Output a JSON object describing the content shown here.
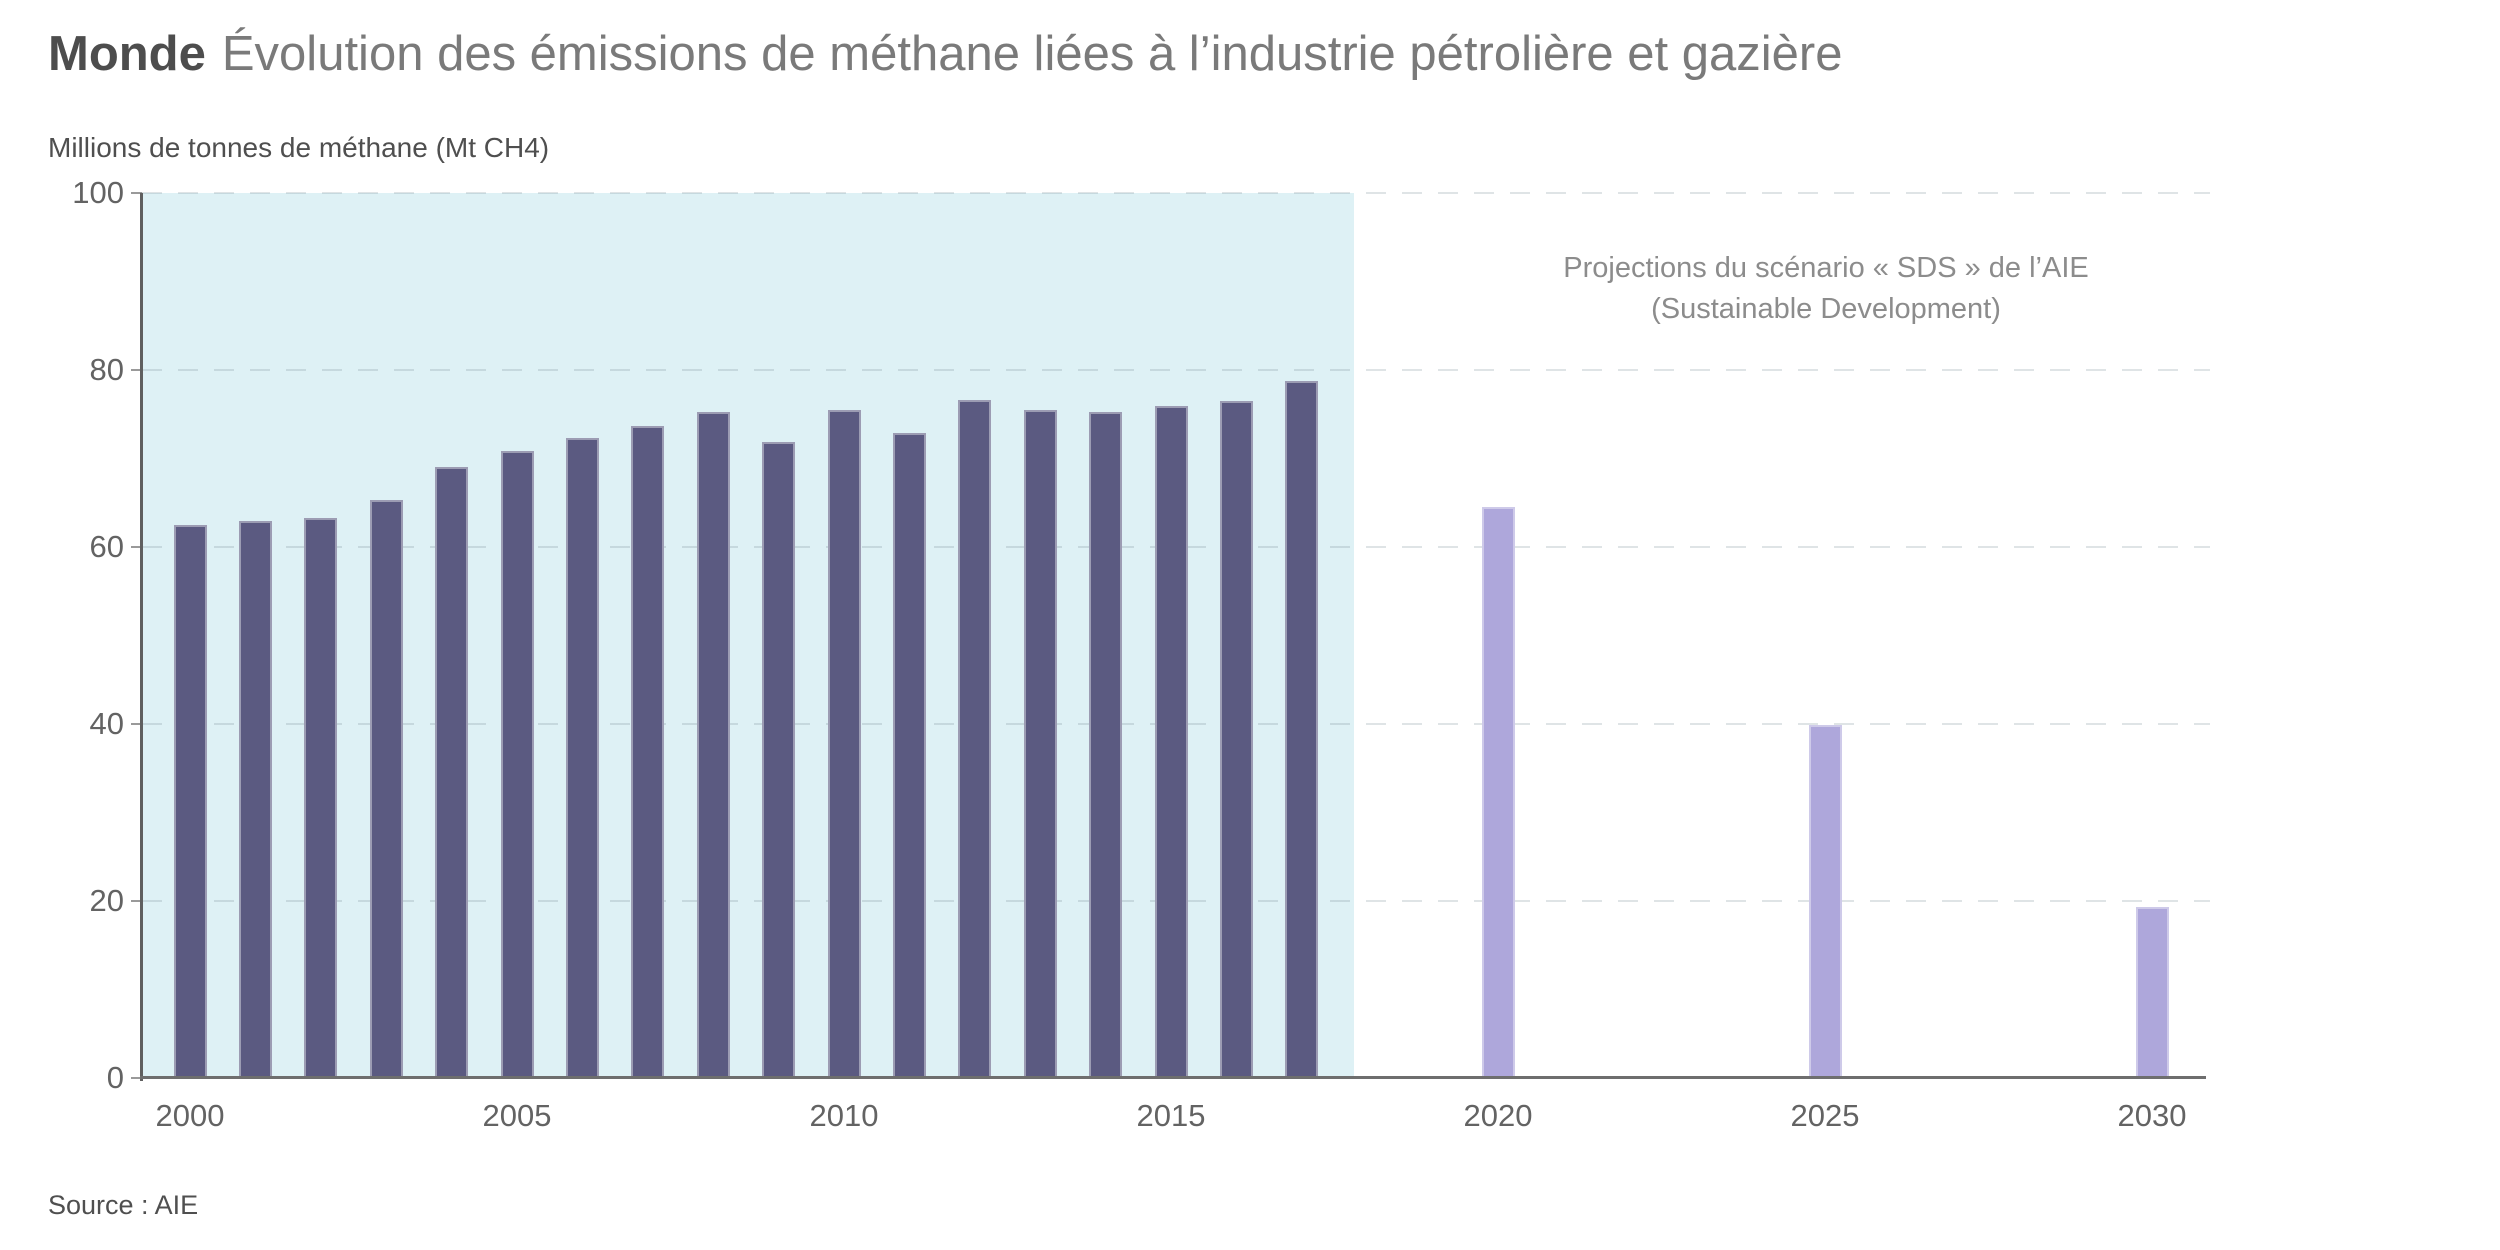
{
  "header": {
    "region": "Monde",
    "title": "Évolution des émissions de méthane liées à l’industrie pétrolière et gazière"
  },
  "unit_label": "Millions de tonnes de méthane (Mt CH4)",
  "source": "Source : AIE",
  "colors": {
    "historical_bar": "#5b5a81",
    "projection_bar": "#aea7db",
    "highlight_bg": "#def1f5",
    "grid": "rgba(110,130,140,0.22)",
    "axis": "#6e6e6e",
    "title_region": "#4d4d4d",
    "title_text": "#7a7a7a",
    "annotation_text": "#8c8c8c",
    "tick_label_text": "#636363"
  },
  "chart_data": {
    "type": "bar",
    "title": "Monde — Évolution des émissions de méthane liées à l’industrie pétrolière et gazière",
    "xlabel": "",
    "ylabel": "Millions de tonnes de méthane (Mt CH4)",
    "ylim": [
      0,
      100
    ],
    "yticks": [
      0,
      20,
      40,
      60,
      80,
      100
    ],
    "xticks": [
      2000,
      2005,
      2010,
      2015,
      2020,
      2025,
      2030
    ],
    "grid": "dashed-horizontal",
    "legend": "none",
    "annotation": {
      "line1": "Projections du scénario « SDS » de l’AIE",
      "line2": "(Sustainable Development)"
    },
    "highlight_region": {
      "from_year": 2000,
      "to_year": 2017.8,
      "color": "#def1f5"
    },
    "series": [
      {
        "id": "historique",
        "color": "#5b5a81",
        "points": [
          {
            "year": 2000,
            "value": 62.5
          },
          {
            "year": 2001,
            "value": 62.9
          },
          {
            "year": 2002,
            "value": 63.3
          },
          {
            "year": 2003,
            "value": 65.3
          },
          {
            "year": 2004,
            "value": 69.0
          },
          {
            "year": 2005,
            "value": 70.8
          },
          {
            "year": 2006,
            "value": 72.3
          },
          {
            "year": 2007,
            "value": 73.7
          },
          {
            "year": 2008,
            "value": 75.2
          },
          {
            "year": 2009,
            "value": 71.9
          },
          {
            "year": 2010,
            "value": 75.5
          },
          {
            "year": 2011,
            "value": 72.9
          },
          {
            "year": 2012,
            "value": 76.6
          },
          {
            "year": 2013,
            "value": 75.5
          },
          {
            "year": 2014,
            "value": 75.2
          },
          {
            "year": 2015,
            "value": 75.9
          },
          {
            "year": 2016,
            "value": 76.5
          },
          {
            "year": 2017,
            "value": 78.8
          }
        ]
      },
      {
        "id": "projection-sds",
        "color": "#aea7db",
        "points": [
          {
            "year": 2020,
            "value": 64.5
          },
          {
            "year": 2025,
            "value": 39.9
          },
          {
            "year": 2030,
            "value": 19.3
          }
        ]
      }
    ]
  }
}
